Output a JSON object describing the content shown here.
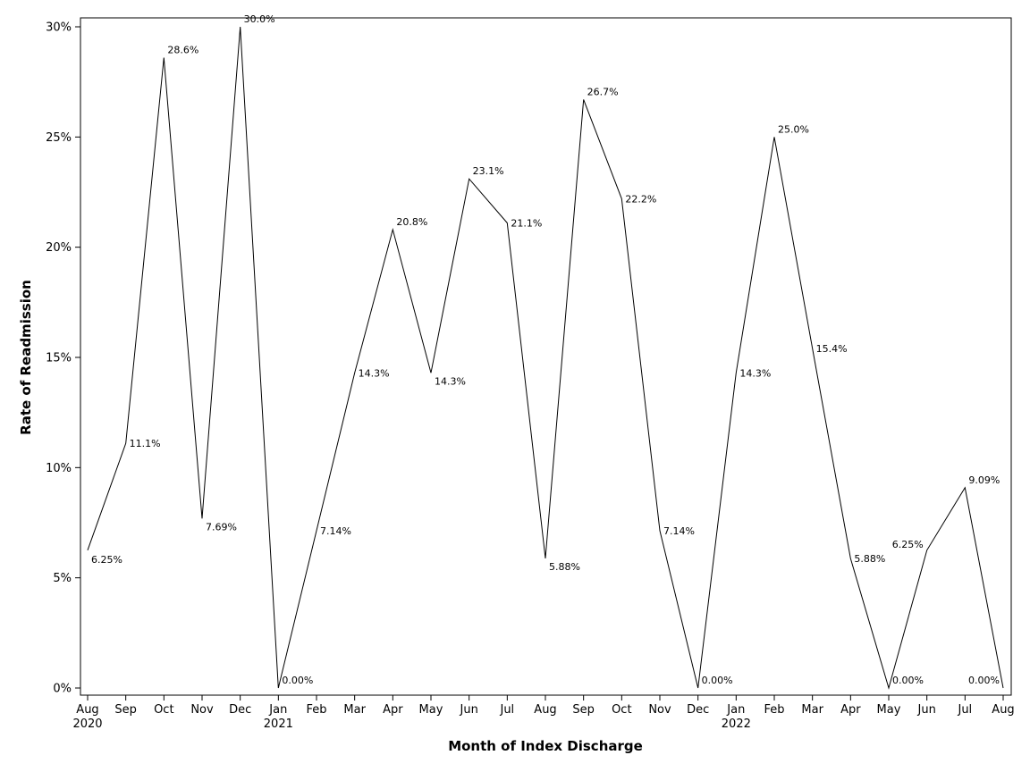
{
  "chart_data": {
    "type": "line",
    "xlabel": "Month of Index Discharge",
    "ylabel": "Rate of Readmission",
    "ylim": [
      0,
      30
    ],
    "yticks": [
      "0%",
      "5%",
      "10%",
      "15%",
      "20%",
      "25%",
      "30%"
    ],
    "grid": false,
    "legend": "none",
    "categories": [
      "Aug",
      "Sep",
      "Oct",
      "Nov",
      "Dec",
      "Jan",
      "Feb",
      "Mar",
      "Apr",
      "May",
      "Jun",
      "Jul",
      "Aug",
      "Sep",
      "Oct",
      "Nov",
      "Dec",
      "Jan",
      "Feb",
      "Mar",
      "Apr",
      "May",
      "Jun",
      "Jul",
      "Aug"
    ],
    "year_labels": [
      "2020",
      "",
      "",
      "",
      "",
      "2021",
      "",
      "",
      "",
      "",
      "",
      "",
      "",
      "",
      "",
      "",
      "",
      "2022",
      "",
      "",
      "",
      "",
      "",
      "",
      ""
    ],
    "values": [
      6.25,
      11.1,
      28.6,
      7.69,
      30.0,
      0.0,
      7.14,
      14.3,
      20.8,
      14.3,
      23.1,
      21.1,
      5.88,
      26.7,
      22.2,
      7.14,
      0.0,
      14.3,
      25.0,
      15.4,
      5.88,
      0.0,
      6.25,
      9.09,
      0.0
    ],
    "data_labels": [
      "6.25%",
      "11.1%",
      "28.6%",
      "7.69%",
      "30.0%",
      "0.00%",
      "7.14%",
      "14.3%",
      "20.8%",
      "14.3%",
      "23.1%",
      "21.1%",
      "5.88%",
      "26.7%",
      "22.2%",
      "7.14%",
      "0.00%",
      "14.3%",
      "25.0%",
      "15.4%",
      "5.88%",
      "0.00%",
      "6.25%",
      "9.09%",
      "0.00%"
    ]
  }
}
